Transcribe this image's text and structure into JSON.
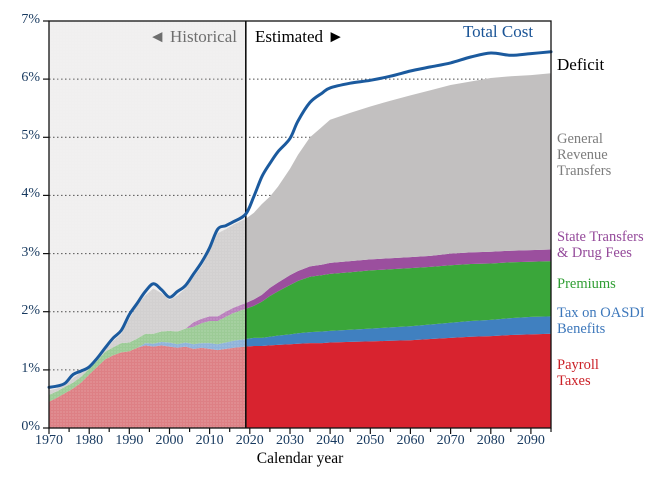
{
  "annotations": {
    "historical_label": "Historical",
    "estimated_label": "Estimated",
    "left_arrow": "◄",
    "right_arrow": "►",
    "total_cost_label": "Total Cost",
    "deficit_label": "Deficit"
  },
  "right_labels": {
    "general_revenue": {
      "line1": "General",
      "line2": "Revenue",
      "line3": "Transfers"
    },
    "state_transfers": {
      "line1": "State Transfers",
      "line2": "& Drug Fees"
    },
    "premiums": {
      "line1": "Premiums"
    },
    "oasdi": {
      "line1": "Tax on OASDI",
      "line2": "Benefits"
    },
    "payroll": {
      "line1": "Payroll",
      "line2": "Taxes"
    }
  },
  "chart_data": {
    "type": "area",
    "title": "",
    "xlabel": "Calendar year",
    "ylabel": "",
    "ylim": [
      0,
      7
    ],
    "x_domain": [
      1970,
      2095
    ],
    "divider_year": 2019,
    "grid": "dotted-horizontal",
    "y_tick_values": [
      0,
      1,
      2,
      3,
      4,
      5,
      6,
      7
    ],
    "y_tick_labels": [
      "0%",
      "1%",
      "2%",
      "3%",
      "4%",
      "5%",
      "6%",
      "7%"
    ],
    "x_tick_label_years": [
      1970,
      1980,
      1990,
      2000,
      2010,
      2020,
      2030,
      2040,
      2050,
      2060,
      2070,
      2080,
      2090
    ],
    "x_minor_tick_step": 5,
    "historical_bg_color": "#f0efef",
    "years": [
      1970,
      1972,
      1974,
      1976,
      1978,
      1980,
      1982,
      1984,
      1986,
      1988,
      1990,
      1992,
      1994,
      1996,
      1998,
      2000,
      2002,
      2004,
      2006,
      2008,
      2010,
      2012,
      2014,
      2016,
      2019,
      2021,
      2023,
      2025,
      2027,
      2030,
      2032,
      2035,
      2038,
      2040,
      2045,
      2050,
      2055,
      2060,
      2065,
      2070,
      2075,
      2080,
      2085,
      2090,
      2095
    ],
    "series": [
      {
        "name": "payroll_taxes",
        "label": "Payroll Taxes",
        "color": "#d8232f",
        "color_historical": "#dd8085",
        "values": [
          0.45,
          0.52,
          0.6,
          0.68,
          0.78,
          0.92,
          1.05,
          1.18,
          1.25,
          1.3,
          1.32,
          1.38,
          1.42,
          1.4,
          1.42,
          1.4,
          1.38,
          1.4,
          1.36,
          1.38,
          1.36,
          1.34,
          1.36,
          1.38,
          1.4,
          1.41,
          1.41,
          1.42,
          1.43,
          1.44,
          1.45,
          1.46,
          1.46,
          1.47,
          1.48,
          1.49,
          1.5,
          1.51,
          1.53,
          1.55,
          1.57,
          1.58,
          1.6,
          1.61,
          1.62
        ]
      },
      {
        "name": "tax_on_oasdi_benefits",
        "label": "Tax on OASDI Benefits",
        "color": "#4080c0",
        "color_historical": "#8fb3da",
        "values": [
          0,
          0,
          0,
          0,
          0,
          0,
          0,
          0,
          0,
          0,
          0,
          0,
          0.04,
          0.05,
          0.06,
          0.07,
          0.06,
          0.07,
          0.08,
          0.08,
          0.1,
          0.1,
          0.11,
          0.12,
          0.13,
          0.14,
          0.14,
          0.15,
          0.16,
          0.17,
          0.18,
          0.19,
          0.2,
          0.2,
          0.21,
          0.22,
          0.23,
          0.24,
          0.25,
          0.26,
          0.27,
          0.28,
          0.29,
          0.3,
          0.3
        ]
      },
      {
        "name": "premiums",
        "label": "Premiums",
        "color": "#3aa63a",
        "color_historical": "#9ccb96",
        "values": [
          0.12,
          0.11,
          0.11,
          0.1,
          0.1,
          0.1,
          0.11,
          0.13,
          0.14,
          0.16,
          0.15,
          0.16,
          0.16,
          0.17,
          0.18,
          0.2,
          0.22,
          0.24,
          0.3,
          0.34,
          0.38,
          0.4,
          0.44,
          0.48,
          0.52,
          0.55,
          0.62,
          0.7,
          0.76,
          0.85,
          0.9,
          0.95,
          0.97,
          0.98,
          0.99,
          1.0,
          1.0,
          1.0,
          0.99,
          0.99,
          0.98,
          0.97,
          0.96,
          0.95,
          0.95
        ]
      },
      {
        "name": "state_transfers_drug_fees",
        "label": "State Transfers & Drug Fees",
        "color": "#9b4f9e",
        "color_historical": "#b97fbc",
        "values": [
          0,
          0,
          0,
          0,
          0,
          0,
          0,
          0,
          0,
          0,
          0,
          0,
          0,
          0,
          0,
          0,
          0,
          0,
          0.08,
          0.08,
          0.08,
          0.08,
          0.09,
          0.09,
          0.1,
          0.11,
          0.12,
          0.14,
          0.15,
          0.17,
          0.17,
          0.18,
          0.18,
          0.19,
          0.19,
          0.19,
          0.19,
          0.19,
          0.19,
          0.2,
          0.2,
          0.2,
          0.2,
          0.2,
          0.2
        ]
      },
      {
        "name": "general_revenue_transfers",
        "label": "General Revenue Transfers",
        "color": "#c2c0c0",
        "color_historical": "#d2d0d0",
        "values": [
          0.08,
          0.05,
          0.03,
          0.08,
          0.08,
          0.02,
          0.01,
          0.03,
          0.11,
          0.16,
          0.41,
          0.58,
          0.66,
          0.78,
          0.66,
          0.53,
          0.62,
          0.69,
          0.78,
          0.9,
          1.13,
          1.43,
          1.42,
          1.43,
          1.45,
          1.49,
          1.56,
          1.57,
          1.65,
          1.83,
          2.0,
          2.22,
          2.37,
          2.46,
          2.55,
          2.63,
          2.71,
          2.78,
          2.85,
          2.9,
          2.94,
          2.99,
          3.0,
          3.01,
          3.03
        ]
      }
    ],
    "line": {
      "name": "total_cost",
      "label": "Total Cost",
      "color": "#1b5a9e",
      "values": [
        0.7,
        0.72,
        0.77,
        0.92,
        0.98,
        1.05,
        1.2,
        1.38,
        1.55,
        1.68,
        1.95,
        2.15,
        2.35,
        2.48,
        2.38,
        2.25,
        2.35,
        2.45,
        2.65,
        2.85,
        3.1,
        3.42,
        3.48,
        3.55,
        3.68,
        3.98,
        4.32,
        4.55,
        4.75,
        4.98,
        5.28,
        5.6,
        5.76,
        5.85,
        5.93,
        5.98,
        6.05,
        6.14,
        6.21,
        6.28,
        6.38,
        6.45,
        6.41,
        6.44,
        6.47
      ]
    },
    "deficit_note": "gap between Total Cost line and top of General Revenue Transfers area"
  }
}
